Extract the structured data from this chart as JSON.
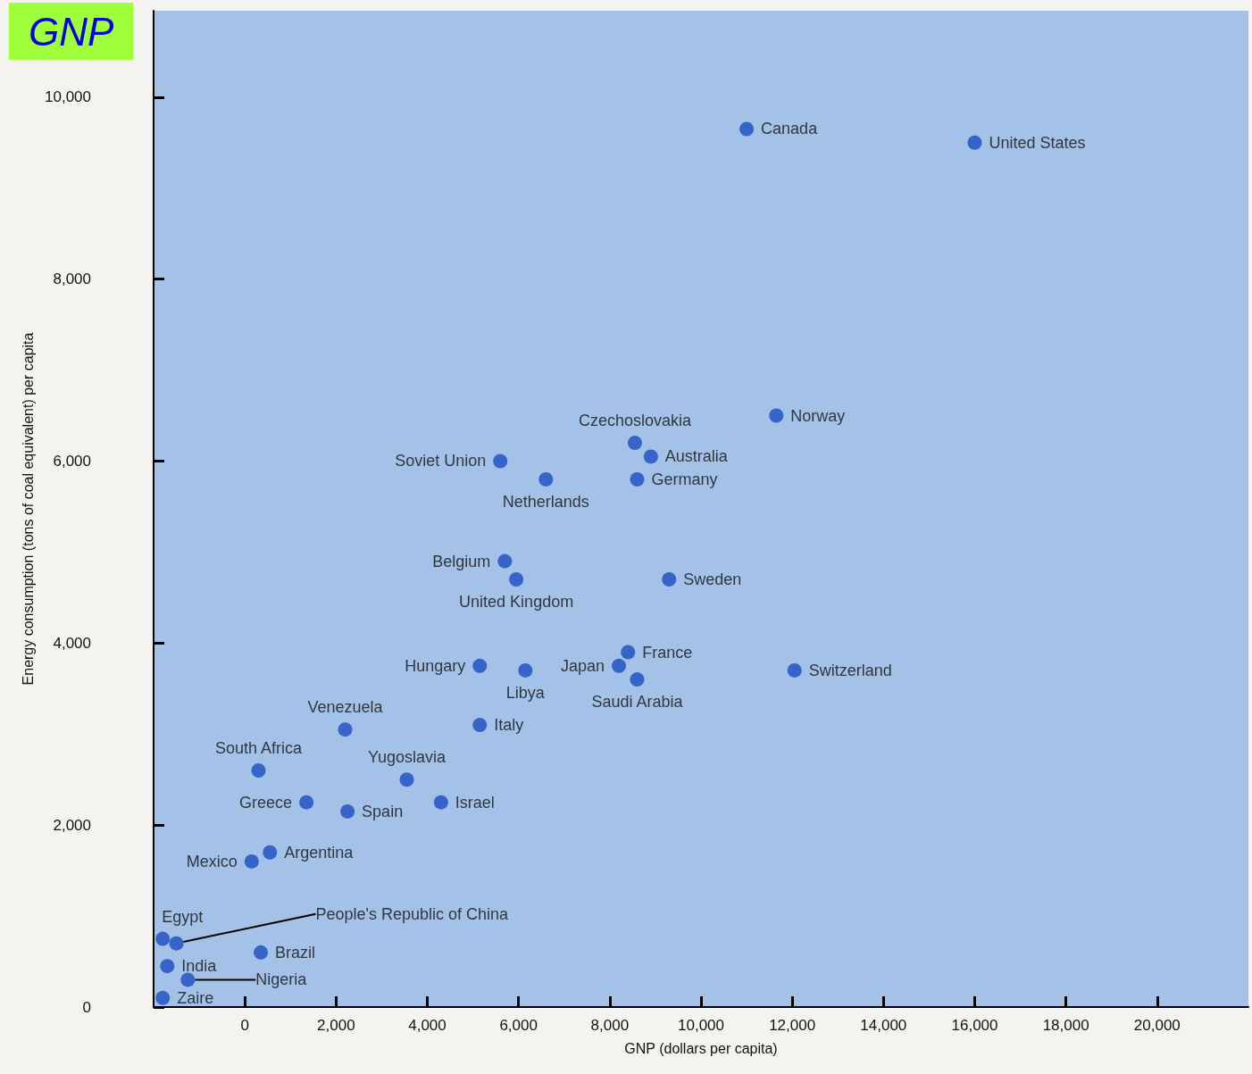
{
  "chart_data": {
    "type": "scatter",
    "title": "GNP",
    "xlabel": "GNP (dollars per capita)",
    "ylabel": "Energy consumption (tons of coal equivalent) per capita",
    "x": [
      11000,
      16000,
      11650,
      8550,
      8900,
      8600,
      5600,
      6600,
      5700,
      5950,
      9300,
      8400,
      8200,
      8600,
      12050,
      5150,
      6150,
      5150,
      2200,
      300,
      3550,
      4300,
      1350,
      2250,
      550,
      150,
      -1800,
      -1500,
      -1700,
      -1250,
      350,
      -1800
    ],
    "values": [
      9650,
      9500,
      6500,
      6200,
      6050,
      5800,
      6000,
      5800,
      4900,
      4700,
      4700,
      3900,
      3750,
      3600,
      3700,
      3750,
      3700,
      3100,
      3050,
      2600,
      2500,
      2250,
      2250,
      2150,
      1700,
      1600,
      750,
      700,
      450,
      300,
      600,
      100
    ],
    "value_labels": [
      "Canada",
      "United States",
      "Norway",
      "Czechoslovakia",
      "Australia",
      "Germany",
      "Soviet Union",
      "Netherlands",
      "Belgium",
      "United Kingdom",
      "Sweden",
      "France",
      "Japan",
      "Saudi Arabia",
      "Switzerland",
      "Hungary",
      "Libya",
      "Italy",
      "Venezuela",
      "South Africa",
      "Yugoslavia",
      "Israel",
      "Greece",
      "Spain",
      "Argentina",
      "Mexico",
      "Egypt",
      "People's Republic of China",
      "India",
      "Nigeria",
      "Brazil",
      "Zaire"
    ],
    "color": "#1a4cc0",
    "marker": "circle",
    "grid": false,
    "xlim": [
      -2000,
      22000
    ],
    "ylim": [
      0,
      10950
    ],
    "xticks": [
      {
        "value": 0,
        "label": "0"
      },
      {
        "value": 2000,
        "label": "2,000"
      },
      {
        "value": 4000,
        "label": "4,000"
      },
      {
        "value": 6000,
        "label": "6,000"
      },
      {
        "value": 8000,
        "label": "8,000"
      },
      {
        "value": 10000,
        "label": "10,000"
      },
      {
        "value": 12000,
        "label": "12,000"
      },
      {
        "value": 14000,
        "label": "14,000"
      },
      {
        "value": 16000,
        "label": "16,000"
      },
      {
        "value": 18000,
        "label": "18,000"
      },
      {
        "value": 20000,
        "label": "20,000"
      }
    ],
    "yticks": [
      {
        "value": 0,
        "label": "0"
      },
      {
        "value": 2000,
        "label": "2,000"
      },
      {
        "value": 4000,
        "label": "4,000"
      },
      {
        "value": 6000,
        "label": "6,000"
      },
      {
        "value": 8000,
        "label": "8,000"
      },
      {
        "value": 10000,
        "label": "10,000"
      }
    ]
  }
}
